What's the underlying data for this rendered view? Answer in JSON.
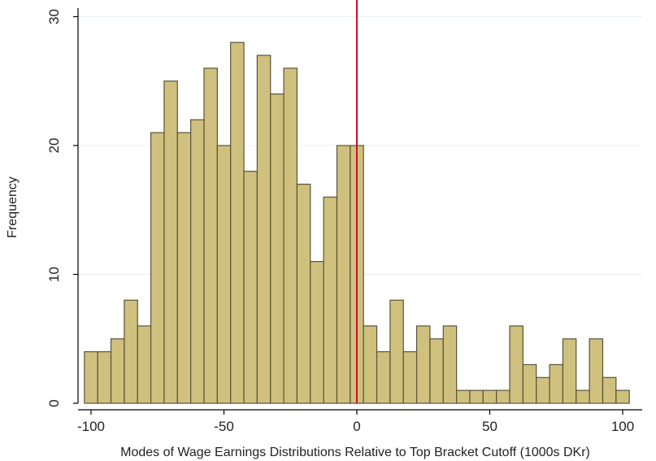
{
  "chart_data": {
    "type": "bar",
    "title": "",
    "xlabel": "Modes of Wage Earnings Distributions Relative to Top Bracket Cutoff (1000s DKr)",
    "ylabel": "Frequency",
    "bin_width": 5,
    "bin_starts": [
      -102.5,
      -97.5,
      -92.5,
      -87.5,
      -82.5,
      -77.5,
      -72.5,
      -67.5,
      -62.5,
      -57.5,
      -52.5,
      -47.5,
      -42.5,
      -37.5,
      -32.5,
      -27.5,
      -22.5,
      -17.5,
      -12.5,
      -7.5,
      -2.5,
      2.5,
      7.5,
      12.5,
      17.5,
      22.5,
      27.5,
      32.5,
      37.5,
      42.5,
      47.5,
      52.5,
      57.5,
      62.5,
      67.5,
      72.5,
      77.5,
      82.5,
      87.5,
      92.5,
      97.5
    ],
    "values": [
      4,
      4,
      5,
      8,
      6,
      21,
      25,
      21,
      22,
      26,
      20,
      28,
      18,
      27,
      24,
      26,
      17,
      11,
      16,
      20,
      20,
      6,
      4,
      8,
      4,
      6,
      5,
      6,
      1,
      1,
      1,
      1,
      6,
      3,
      2,
      3,
      5,
      1,
      5,
      2,
      1
    ],
    "xlim": [
      -105,
      105
    ],
    "ylim": [
      0,
      30
    ],
    "xticks": [
      -100,
      -50,
      0,
      50,
      100
    ],
    "yticks": [
      0,
      10,
      20,
      30
    ],
    "reference_line": {
      "x": 0,
      "color": "#c8102e"
    },
    "grid": "horizontal",
    "colors": {
      "bar_fill": "#cfc17d",
      "bar_stroke": "#57543a",
      "grid": "#e8eeef",
      "axis": "#000000"
    }
  }
}
